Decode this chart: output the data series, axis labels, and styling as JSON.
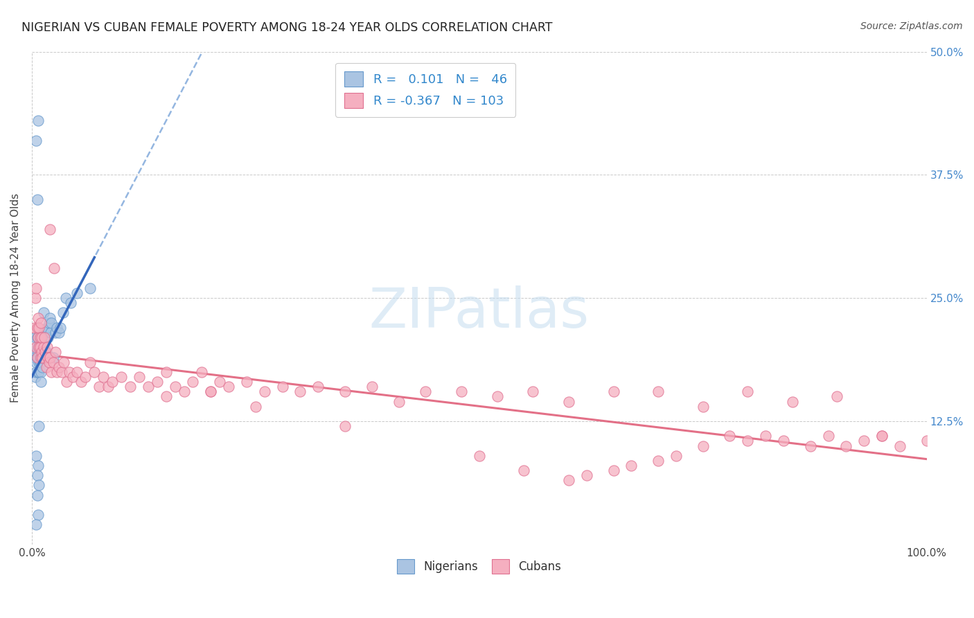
{
  "title": "NIGERIAN VS CUBAN FEMALE POVERTY AMONG 18-24 YEAR OLDS CORRELATION CHART",
  "source": "Source: ZipAtlas.com",
  "ylabel": "Female Poverty Among 18-24 Year Olds",
  "xlim": [
    0.0,
    1.0
  ],
  "ylim": [
    0.0,
    0.5
  ],
  "yticklabels_right": [
    "",
    "12.5%",
    "25.0%",
    "37.5%",
    "50.0%"
  ],
  "nigerian_color": "#aac4e2",
  "nigerian_edge": "#6699cc",
  "cuban_color": "#f5afc0",
  "cuban_edge": "#e07090",
  "trend_nigerian_dashed_color": "#88aedd",
  "trend_nigerian_solid_color": "#3366bb",
  "trend_cuban_color": "#e0607a",
  "legend_nigerian_R": "0.101",
  "legend_nigerian_N": "46",
  "legend_cuban_R": "-0.367",
  "legend_cuban_N": "103",
  "watermark": "ZIPatlas",
  "background_color": "#ffffff",
  "nigerian_x": [
    0.003,
    0.004,
    0.004,
    0.005,
    0.005,
    0.005,
    0.006,
    0.006,
    0.006,
    0.007,
    0.007,
    0.008,
    0.008,
    0.008,
    0.009,
    0.009,
    0.009,
    0.009,
    0.01,
    0.01,
    0.01,
    0.011,
    0.011,
    0.012,
    0.012,
    0.013,
    0.013,
    0.014,
    0.015,
    0.016,
    0.017,
    0.018,
    0.019,
    0.02,
    0.021,
    0.022,
    0.024,
    0.026,
    0.028,
    0.03,
    0.032,
    0.035,
    0.038,
    0.043,
    0.05,
    0.065
  ],
  "nigerian_y": [
    0.19,
    0.21,
    0.17,
    0.195,
    0.185,
    0.175,
    0.2,
    0.19,
    0.21,
    0.175,
    0.195,
    0.185,
    0.2,
    0.175,
    0.19,
    0.185,
    0.21,
    0.195,
    0.185,
    0.175,
    0.165,
    0.19,
    0.205,
    0.19,
    0.18,
    0.215,
    0.235,
    0.195,
    0.215,
    0.195,
    0.22,
    0.21,
    0.225,
    0.23,
    0.215,
    0.225,
    0.19,
    0.215,
    0.22,
    0.215,
    0.22,
    0.235,
    0.25,
    0.245,
    0.255,
    0.26
  ],
  "nigerian_y_outliers": [
    0.41,
    0.43,
    0.35,
    0.09,
    0.08,
    0.07,
    0.12,
    0.05,
    0.06,
    0.03,
    0.02
  ],
  "nigerian_x_outliers": [
    0.005,
    0.007,
    0.006,
    0.005,
    0.007,
    0.006,
    0.008,
    0.006,
    0.008,
    0.007,
    0.005
  ],
  "cuban_x": [
    0.003,
    0.004,
    0.005,
    0.005,
    0.006,
    0.006,
    0.007,
    0.007,
    0.008,
    0.008,
    0.009,
    0.009,
    0.01,
    0.01,
    0.011,
    0.011,
    0.012,
    0.013,
    0.014,
    0.015,
    0.016,
    0.017,
    0.018,
    0.019,
    0.02,
    0.022,
    0.024,
    0.026,
    0.028,
    0.03,
    0.033,
    0.036,
    0.039,
    0.042,
    0.046,
    0.05,
    0.055,
    0.06,
    0.065,
    0.07,
    0.075,
    0.08,
    0.085,
    0.09,
    0.1,
    0.11,
    0.12,
    0.13,
    0.14,
    0.15,
    0.16,
    0.17,
    0.18,
    0.19,
    0.2,
    0.21,
    0.22,
    0.24,
    0.26,
    0.28,
    0.3,
    0.32,
    0.35,
    0.38,
    0.41,
    0.44,
    0.48,
    0.52,
    0.56,
    0.6,
    0.65,
    0.7,
    0.75,
    0.8,
    0.85,
    0.9,
    0.95
  ],
  "cuban_y": [
    0.22,
    0.25,
    0.2,
    0.26,
    0.19,
    0.22,
    0.21,
    0.23,
    0.2,
    0.22,
    0.2,
    0.21,
    0.19,
    0.225,
    0.195,
    0.21,
    0.19,
    0.2,
    0.21,
    0.195,
    0.18,
    0.2,
    0.19,
    0.185,
    0.19,
    0.175,
    0.185,
    0.195,
    0.175,
    0.18,
    0.175,
    0.185,
    0.165,
    0.175,
    0.17,
    0.175,
    0.165,
    0.17,
    0.185,
    0.175,
    0.16,
    0.17,
    0.16,
    0.165,
    0.17,
    0.16,
    0.17,
    0.16,
    0.165,
    0.15,
    0.16,
    0.155,
    0.165,
    0.175,
    0.155,
    0.165,
    0.16,
    0.165,
    0.155,
    0.16,
    0.155,
    0.16,
    0.155,
    0.16,
    0.145,
    0.155,
    0.155,
    0.15,
    0.155,
    0.145,
    0.155,
    0.155,
    0.14,
    0.155,
    0.145,
    0.15,
    0.11
  ],
  "cuban_y_extra": [
    0.32,
    0.28,
    0.175,
    0.155,
    0.14,
    0.12,
    0.09,
    0.075,
    0.065,
    0.07,
    0.075,
    0.08,
    0.085,
    0.09,
    0.1,
    0.11,
    0.105,
    0.11,
    0.105,
    0.1,
    0.11,
    0.1,
    0.105,
    0.11,
    0.1,
    0.105
  ],
  "cuban_x_extra": [
    0.02,
    0.025,
    0.15,
    0.2,
    0.25,
    0.35,
    0.5,
    0.55,
    0.6,
    0.62,
    0.65,
    0.67,
    0.7,
    0.72,
    0.75,
    0.78,
    0.8,
    0.82,
    0.84,
    0.87,
    0.89,
    0.91,
    0.93,
    0.95,
    0.97,
    1.0
  ]
}
